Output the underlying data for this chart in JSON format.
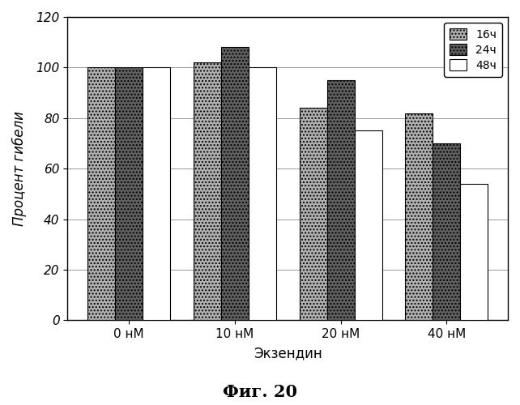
{
  "categories": [
    "0 нМ",
    "10 нМ",
    "20 нМ",
    "40 нМ"
  ],
  "series": {
    "16ч": [
      100,
      102,
      84,
      82
    ],
    "24ч": [
      100,
      108,
      95,
      70
    ],
    "48ч": [
      100,
      100,
      75,
      54
    ]
  },
  "ylabel": "Процент гибели",
  "xlabel": "Экзендин",
  "title": "Фиг. 20",
  "ylim": [
    0,
    120
  ],
  "yticks": [
    0,
    20,
    40,
    60,
    80,
    100,
    120
  ],
  "legend_labels": [
    "16ч",
    "24ч",
    "48ч"
  ],
  "bar_width": 0.26,
  "colors": {
    "16ч": "#b0b0b0",
    "24ч": "#606060",
    "48ч": "#ffffff"
  },
  "hatches": {
    "16ч": "....",
    "24ч": "....",
    "48ч": ""
  },
  "edgecolor": "#000000",
  "background_color": "#ffffff",
  "grid": true
}
